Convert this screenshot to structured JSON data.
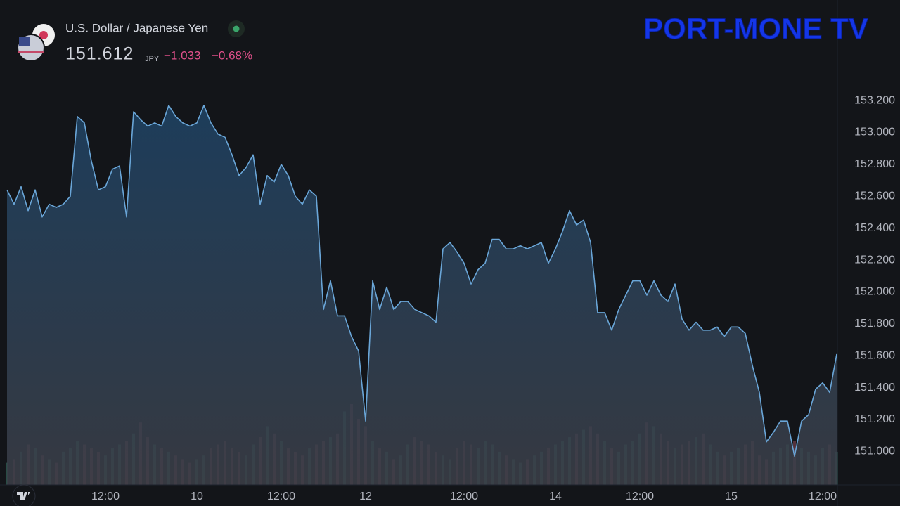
{
  "header": {
    "title": "U.S. Dollar / Japanese Yen",
    "price": "151.612",
    "currency": "JPY",
    "change": "−1.033",
    "change_percent": "−0.68%"
  },
  "watermark": "PORT-MONE TV",
  "chart_data": {
    "type": "area",
    "categories": [
      null,
      null,
      null,
      null,
      null,
      null,
      null,
      null,
      null,
      null,
      null,
      null,
      null,
      null,
      "12:00",
      null,
      null,
      null,
      null,
      null,
      null,
      null,
      null,
      null,
      null,
      null,
      null,
      "10",
      null,
      null,
      null,
      null,
      null,
      null,
      null,
      null,
      null,
      null,
      null,
      "12:00",
      null,
      null,
      null,
      null,
      null,
      null,
      null,
      null,
      null,
      null,
      null,
      "12",
      null,
      null,
      null,
      null,
      null,
      null,
      null,
      null,
      null,
      null,
      null,
      null,
      null,
      "12:00",
      null,
      null,
      null,
      null,
      null,
      null,
      null,
      null,
      null,
      null,
      null,
      null,
      "14",
      null,
      null,
      null,
      null,
      null,
      null,
      null,
      null,
      null,
      null,
      null,
      "12:00",
      null,
      null,
      null,
      null,
      null,
      null,
      null,
      null,
      null,
      null,
      null,
      null,
      "15",
      null,
      null,
      null,
      null,
      null,
      null,
      null,
      null,
      null,
      null,
      null,
      null,
      "12:00",
      null,
      null
    ],
    "values": [
      152.64,
      152.55,
      152.66,
      152.51,
      152.64,
      152.47,
      152.55,
      152.53,
      152.55,
      152.6,
      153.1,
      153.06,
      152.82,
      152.64,
      152.66,
      152.77,
      152.79,
      152.47,
      153.13,
      153.08,
      153.04,
      153.06,
      153.04,
      153.17,
      153.1,
      153.06,
      153.04,
      153.06,
      153.17,
      153.06,
      152.99,
      152.97,
      152.86,
      152.73,
      152.78,
      152.86,
      152.55,
      152.73,
      152.69,
      152.8,
      152.73,
      152.6,
      152.55,
      152.64,
      152.6,
      151.89,
      152.07,
      151.85,
      151.85,
      151.72,
      151.63,
      151.19,
      152.07,
      151.89,
      152.03,
      151.89,
      151.94,
      151.94,
      151.89,
      151.87,
      151.85,
      151.81,
      152.27,
      152.31,
      152.25,
      152.18,
      152.05,
      152.14,
      152.18,
      152.33,
      152.33,
      152.27,
      152.27,
      152.29,
      152.27,
      152.29,
      152.31,
      152.18,
      152.27,
      152.38,
      152.51,
      152.42,
      152.45,
      152.31,
      151.87,
      151.87,
      151.76,
      151.89,
      151.98,
      152.07,
      152.07,
      151.98,
      152.07,
      151.98,
      151.94,
      152.05,
      151.83,
      151.76,
      151.81,
      151.76,
      151.76,
      151.78,
      151.72,
      151.78,
      151.78,
      151.74,
      151.54,
      151.37,
      151.06,
      151.12,
      151.19,
      151.19,
      150.97,
      151.19,
      151.23,
      151.39,
      151.43,
      151.37,
      151.61
    ],
    "color": "#6aa6d8",
    "volume": [
      30,
      35,
      45,
      55,
      50,
      40,
      35,
      30,
      45,
      50,
      60,
      55,
      50,
      45,
      40,
      50,
      55,
      60,
      70,
      85,
      65,
      55,
      50,
      45,
      40,
      35,
      30,
      35,
      40,
      50,
      55,
      60,
      50,
      45,
      40,
      55,
      65,
      80,
      70,
      60,
      50,
      45,
      40,
      50,
      55,
      60,
      65,
      70,
      100,
      110,
      90,
      80,
      60,
      50,
      45,
      35,
      40,
      55,
      65,
      60,
      55,
      45,
      40,
      35,
      50,
      60,
      55,
      50,
      60,
      55,
      45,
      40,
      35,
      30,
      35,
      40,
      45,
      50,
      55,
      60,
      65,
      70,
      75,
      80,
      70,
      60,
      50,
      45,
      55,
      60,
      70,
      85,
      80,
      70,
      60,
      50,
      55,
      60,
      65,
      70,
      55,
      45,
      40,
      45,
      50,
      55,
      60,
      40,
      35,
      45,
      50,
      55,
      60,
      50,
      45,
      40,
      50,
      55,
      45
    ],
    "volume_colors": {
      "up": "#3d7a6a",
      "down": "#8a4a5a"
    },
    "ylim": [
      150.79,
      153.39
    ],
    "yticks": [
      {
        "value": 151.0,
        "label": "151.000"
      },
      {
        "value": 151.2,
        "label": "151.200"
      },
      {
        "value": 151.4,
        "label": "151.400"
      },
      {
        "value": 151.6,
        "label": "151.600"
      },
      {
        "value": 151.8,
        "label": "151.800"
      },
      {
        "value": 152.0,
        "label": "152.000"
      },
      {
        "value": 152.2,
        "label": "152.200"
      },
      {
        "value": 152.4,
        "label": "152.400"
      },
      {
        "value": 152.6,
        "label": "152.600"
      },
      {
        "value": 152.8,
        "label": "152.800"
      },
      {
        "value": 153.0,
        "label": "153.000"
      },
      {
        "value": 153.2,
        "label": "153.200"
      }
    ],
    "grid": false
  }
}
